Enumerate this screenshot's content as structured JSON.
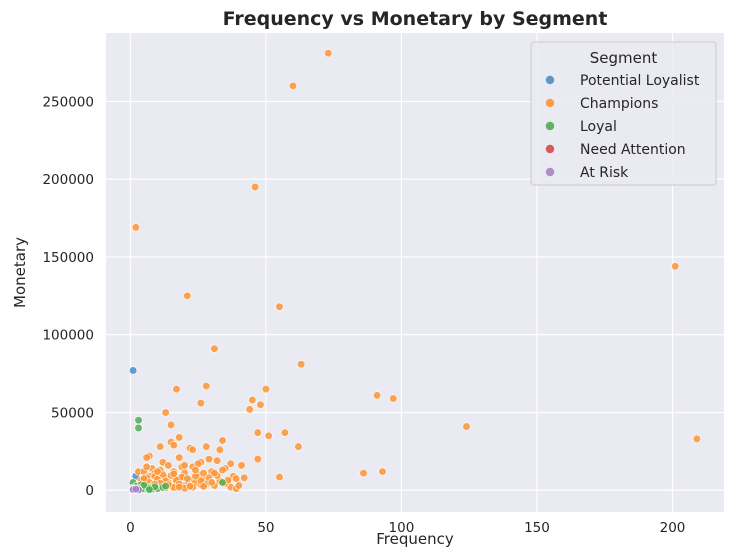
{
  "chart_data": {
    "type": "scatter",
    "title": "Frequency vs Monetary by Segment",
    "xlabel": "Frequency",
    "ylabel": "Monetary",
    "xlim": [
      -9,
      219
    ],
    "ylim": [
      -14000,
      294000
    ],
    "xticks": [
      0,
      50,
      100,
      150,
      200
    ],
    "yticks": [
      0,
      50000,
      100000,
      150000,
      200000,
      250000
    ],
    "grid": true,
    "legend_title": "Segment",
    "legend_position": "top-right",
    "colors": {
      "Potential Loyalist": "#4c8ec2",
      "Champions": "#fd9535",
      "Loyal": "#52ad52",
      "Need Attention": "#d44a4a",
      "At Risk": "#a684c4"
    },
    "series": [
      {
        "name": "Potential Loyalist",
        "color": "#4c8ec2",
        "points": [
          [
            1,
            77000
          ],
          [
            2,
            9000
          ],
          [
            1,
            3000
          ],
          [
            2,
            1500
          ],
          [
            3,
            800
          ],
          [
            1,
            1200
          ],
          [
            4,
            2500
          ],
          [
            2,
            500
          ]
        ]
      },
      {
        "name": "Champions",
        "color": "#fd9535",
        "points": [
          [
            73,
            281000
          ],
          [
            60,
            260000
          ],
          [
            46,
            195000
          ],
          [
            2,
            169000
          ],
          [
            201,
            144000
          ],
          [
            21,
            125000
          ],
          [
            55,
            118000
          ],
          [
            31,
            91000
          ],
          [
            63,
            81000
          ],
          [
            28,
            67000
          ],
          [
            17,
            65000
          ],
          [
            50,
            65000
          ],
          [
            91,
            61000
          ],
          [
            97,
            59000
          ],
          [
            45,
            58000
          ],
          [
            26,
            56000
          ],
          [
            48,
            55000
          ],
          [
            44,
            52000
          ],
          [
            13,
            50000
          ],
          [
            15,
            42000
          ],
          [
            124,
            41000
          ],
          [
            47,
            37000
          ],
          [
            57,
            37000
          ],
          [
            51,
            35000
          ],
          [
            18,
            34000
          ],
          [
            209,
            33000
          ],
          [
            34,
            32000
          ],
          [
            15,
            31000
          ],
          [
            16,
            29000
          ],
          [
            11,
            28000
          ],
          [
            28,
            28000
          ],
          [
            62,
            28000
          ],
          [
            22,
            27000
          ],
          [
            33,
            26000
          ],
          [
            23,
            26000
          ],
          [
            7,
            22000
          ],
          [
            6,
            21000
          ],
          [
            18,
            21000
          ],
          [
            29,
            20000
          ],
          [
            32,
            19000
          ],
          [
            47,
            20000
          ],
          [
            12,
            18000
          ],
          [
            26,
            18000
          ],
          [
            37,
            17000
          ],
          [
            41,
            16000
          ],
          [
            14,
            16000
          ],
          [
            19,
            15000
          ],
          [
            23,
            15000
          ],
          [
            35,
            14000
          ],
          [
            8,
            14000
          ],
          [
            3,
            12000
          ],
          [
            5,
            12000
          ],
          [
            9,
            11000
          ],
          [
            11,
            13000
          ],
          [
            16,
            12000
          ],
          [
            20,
            11000
          ],
          [
            25,
            10000
          ],
          [
            30,
            12000
          ],
          [
            93,
            12000
          ],
          [
            86,
            11000
          ],
          [
            38,
            9000
          ],
          [
            55,
            8500
          ],
          [
            7,
            9000
          ],
          [
            13,
            8000
          ],
          [
            18,
            7000
          ],
          [
            22,
            6500
          ],
          [
            27,
            7000
          ],
          [
            33,
            6000
          ],
          [
            39,
            7500
          ],
          [
            6,
            6000
          ],
          [
            10,
            5500
          ],
          [
            14,
            5000
          ],
          [
            17,
            4500
          ],
          [
            21,
            4000
          ],
          [
            24,
            5000
          ],
          [
            28,
            4000
          ],
          [
            36,
            5500
          ],
          [
            4,
            4000
          ],
          [
            8,
            3500
          ],
          [
            12,
            3000
          ],
          [
            15,
            2500
          ],
          [
            19,
            3000
          ],
          [
            23,
            2000
          ],
          [
            26,
            3500
          ],
          [
            31,
            3000
          ],
          [
            5,
            2000
          ],
          [
            9,
            1500
          ],
          [
            11,
            2000
          ],
          [
            16,
            1800
          ],
          [
            20,
            1200
          ],
          [
            37,
            2000
          ],
          [
            39,
            1000
          ],
          [
            6,
            8000
          ],
          [
            9,
            9000
          ],
          [
            12,
            10000
          ],
          [
            15,
            9500
          ],
          [
            19,
            8500
          ],
          [
            24,
            9000
          ],
          [
            29,
            8000
          ],
          [
            32,
            9500
          ],
          [
            4,
            6500
          ],
          [
            7,
            5000
          ],
          [
            10,
            7000
          ],
          [
            13,
            6000
          ],
          [
            17,
            6500
          ],
          [
            21,
            7500
          ],
          [
            26,
            6000
          ],
          [
            30,
            5000
          ],
          [
            35,
            4500
          ],
          [
            3,
            3000
          ],
          [
            8,
            2500
          ],
          [
            14,
            3500
          ],
          [
            18,
            4000
          ],
          [
            22,
            2500
          ],
          [
            27,
            2500
          ],
          [
            40,
            3000
          ],
          [
            42,
            8000
          ],
          [
            20,
            16000
          ],
          [
            25,
            17000
          ],
          [
            10,
            12000
          ],
          [
            6,
            15000
          ],
          [
            24,
            13000
          ],
          [
            16,
            10500
          ],
          [
            11,
            4500
          ],
          [
            9,
            4000
          ],
          [
            13,
            1500
          ],
          [
            18,
            2000
          ],
          [
            7,
            1200
          ],
          [
            5,
            7500
          ],
          [
            27,
            11000
          ],
          [
            34,
            13000
          ],
          [
            36,
            6500
          ],
          [
            31,
            11000
          ]
        ]
      },
      {
        "name": "Loyal",
        "color": "#52ad52",
        "points": [
          [
            3,
            45000
          ],
          [
            3,
            40000
          ],
          [
            1,
            5000
          ],
          [
            2,
            2500
          ],
          [
            4,
            3500
          ],
          [
            3,
            1200
          ],
          [
            5,
            900
          ],
          [
            6,
            2000
          ],
          [
            7,
            1500
          ],
          [
            34,
            5000
          ],
          [
            2,
            300
          ],
          [
            4,
            600
          ],
          [
            8,
            700
          ],
          [
            10,
            1000
          ],
          [
            5,
            3200
          ],
          [
            9,
            2200
          ],
          [
            12,
            1800
          ],
          [
            1,
            1500
          ],
          [
            7,
            400
          ],
          [
            13,
            2600
          ]
        ]
      },
      {
        "name": "Need Attention",
        "color": "#d44a4a",
        "points": [
          [
            1,
            300
          ],
          [
            2,
            100
          ],
          [
            1,
            800
          ],
          [
            3,
            500
          ],
          [
            2,
            200
          ],
          [
            1,
            50
          ]
        ]
      },
      {
        "name": "At Risk",
        "color": "#a684c4",
        "points": [
          [
            1,
            100
          ],
          [
            2,
            300
          ],
          [
            3,
            200
          ],
          [
            1,
            500
          ],
          [
            2,
            700
          ]
        ]
      }
    ]
  }
}
